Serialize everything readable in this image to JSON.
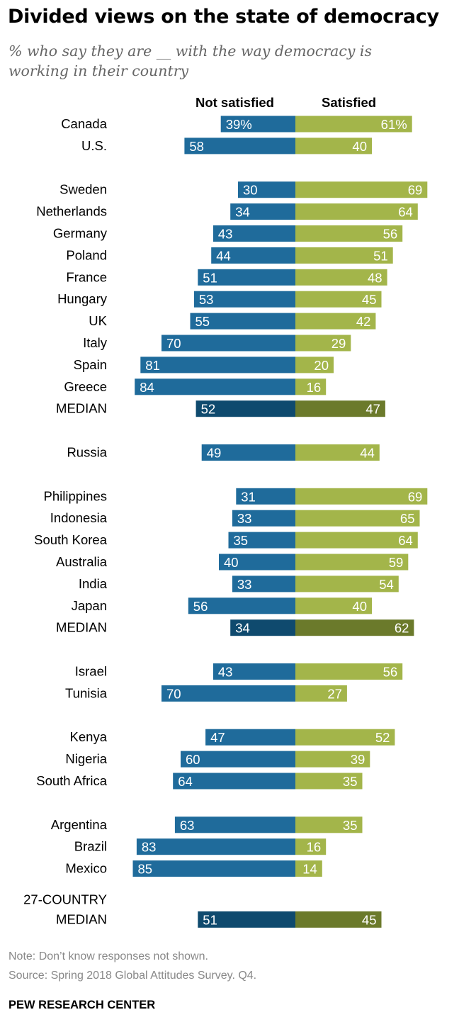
{
  "title": "Divided views on the state of democracy",
  "subtitle": "% who say they are __ with the way democracy is working in their country",
  "note": "Note: Don’t know responses not shown.",
  "source": "Source: Spring 2018 Global Attitudes Survey. Q4.",
  "brand": "PEW RESEARCH CENTER",
  "colors": {
    "not_satisfied": "#1f6b9b",
    "satisfied": "#a3b54a",
    "median_not_satisfied": "#0f4a6e",
    "median_satisfied": "#6b7a2b"
  },
  "chart_data": {
    "type": "bar",
    "orientation": "horizontal diverging",
    "series": [
      {
        "name": "Not satisfied"
      },
      {
        "name": "Satisfied"
      }
    ],
    "rows": [
      {
        "label": "Canada",
        "not_satisfied": 39,
        "satisfied": 61,
        "not_satisfied_label": "39%",
        "satisfied_label": "61%"
      },
      {
        "label": "U.S.",
        "not_satisfied": 58,
        "satisfied": 40
      },
      {
        "gap": true
      },
      {
        "label": "Sweden",
        "not_satisfied": 30,
        "satisfied": 69
      },
      {
        "label": "Netherlands",
        "not_satisfied": 34,
        "satisfied": 64
      },
      {
        "label": "Germany",
        "not_satisfied": 43,
        "satisfied": 56
      },
      {
        "label": "Poland",
        "not_satisfied": 44,
        "satisfied": 51
      },
      {
        "label": "France",
        "not_satisfied": 51,
        "satisfied": 48
      },
      {
        "label": "Hungary",
        "not_satisfied": 53,
        "satisfied": 45
      },
      {
        "label": "UK",
        "not_satisfied": 55,
        "satisfied": 42
      },
      {
        "label": "Italy",
        "not_satisfied": 70,
        "satisfied": 29
      },
      {
        "label": "Spain",
        "not_satisfied": 81,
        "satisfied": 20
      },
      {
        "label": "Greece",
        "not_satisfied": 84,
        "satisfied": 16
      },
      {
        "label": "MEDIAN",
        "not_satisfied": 52,
        "satisfied": 47,
        "median": true
      },
      {
        "gap": true
      },
      {
        "label": "Russia",
        "not_satisfied": 49,
        "satisfied": 44
      },
      {
        "gap": true
      },
      {
        "label": "Philippines",
        "not_satisfied": 31,
        "satisfied": 69
      },
      {
        "label": "Indonesia",
        "not_satisfied": 33,
        "satisfied": 65
      },
      {
        "label": "South Korea",
        "not_satisfied": 35,
        "satisfied": 64
      },
      {
        "label": "Australia",
        "not_satisfied": 40,
        "satisfied": 59
      },
      {
        "label": "India",
        "not_satisfied": 33,
        "satisfied": 54
      },
      {
        "label": "Japan",
        "not_satisfied": 56,
        "satisfied": 40
      },
      {
        "label": "MEDIAN",
        "not_satisfied": 34,
        "satisfied": 62,
        "median": true
      },
      {
        "gap": true
      },
      {
        "label": "Israel",
        "not_satisfied": 43,
        "satisfied": 56
      },
      {
        "label": "Tunisia",
        "not_satisfied": 70,
        "satisfied": 27
      },
      {
        "gap": true
      },
      {
        "label": "Kenya",
        "not_satisfied": 47,
        "satisfied": 52
      },
      {
        "label": "Nigeria",
        "not_satisfied": 60,
        "satisfied": 39
      },
      {
        "label": "South Africa",
        "not_satisfied": 64,
        "satisfied": 35
      },
      {
        "gap": true
      },
      {
        "label": "Argentina",
        "not_satisfied": 63,
        "satisfied": 35
      },
      {
        "label": "Brazil",
        "not_satisfied": 83,
        "satisfied": 16
      },
      {
        "label": "Mexico",
        "not_satisfied": 85,
        "satisfied": 14
      },
      {
        "gap": true
      },
      {
        "label": "27-COUNTRY MEDIAN",
        "label_lines": [
          "27-COUNTRY",
          "MEDIAN"
        ],
        "not_satisfied": 51,
        "satisfied": 45,
        "median": true
      }
    ]
  }
}
